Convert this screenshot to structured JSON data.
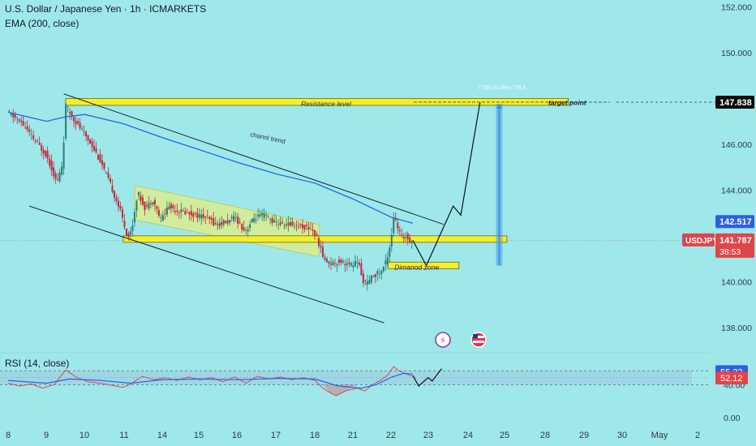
{
  "header": {
    "title": "U.S. Dollar / Japanese Yen · 1h · ICMARKETS",
    "indicator": "EMA (200, close)",
    "rsi_label": "RSI (14, close)"
  },
  "colors": {
    "background": "#9ee8ea",
    "candle_up": "#2c7a74",
    "candle_down": "#c2273a",
    "ema": "#2f5fe0",
    "zone_fill": "#f5ee2a",
    "channel_fill": "#d6ec93",
    "projection": "#3a8fe8",
    "rsi_line": "#e0454a",
    "rsi_ma": "#2f5fe0"
  },
  "chart_data": [
    {
      "type": "candlestick",
      "symbol": "USDJPY",
      "interval": "1h",
      "x_ticks": [
        "8",
        "9",
        "10",
        "11",
        "14",
        "15",
        "16",
        "17",
        "18",
        "21",
        "22",
        "23",
        "24",
        "25",
        "28",
        "29",
        "30",
        "May",
        "2"
      ],
      "y_ticks": [
        "152.000",
        "150.000",
        "146.000",
        "144.000",
        "140.000",
        "138.000"
      ],
      "ylim": [
        137.0,
        152.3
      ],
      "price_path": [
        {
          "t": 0,
          "p": 147.4
        },
        {
          "t": 0.35,
          "p": 147.0
        },
        {
          "t": 0.7,
          "p": 146.2
        },
        {
          "t": 1.0,
          "p": 145.6
        },
        {
          "t": 1.15,
          "p": 145.0
        },
        {
          "t": 1.3,
          "p": 144.3
        },
        {
          "t": 1.45,
          "p": 145.2
        },
        {
          "t": 1.52,
          "p": 147.7
        },
        {
          "t": 1.7,
          "p": 147.2
        },
        {
          "t": 1.95,
          "p": 146.6
        },
        {
          "t": 2.2,
          "p": 146.0
        },
        {
          "t": 2.45,
          "p": 145.2
        },
        {
          "t": 2.7,
          "p": 144.2
        },
        {
          "t": 2.95,
          "p": 143.1
        },
        {
          "t": 3.15,
          "p": 141.9
        },
        {
          "t": 3.25,
          "p": 142.3
        },
        {
          "t": 3.4,
          "p": 143.9
        },
        {
          "t": 3.6,
          "p": 143.2
        },
        {
          "t": 3.8,
          "p": 143.6
        },
        {
          "t": 4.0,
          "p": 142.7
        },
        {
          "t": 4.2,
          "p": 143.3
        },
        {
          "t": 4.45,
          "p": 143.1
        },
        {
          "t": 4.7,
          "p": 143.0
        },
        {
          "t": 4.95,
          "p": 142.9
        },
        {
          "t": 5.2,
          "p": 142.8
        },
        {
          "t": 5.45,
          "p": 142.5
        },
        {
          "t": 5.7,
          "p": 142.6
        },
        {
          "t": 5.95,
          "p": 142.8
        },
        {
          "t": 6.2,
          "p": 142.2
        },
        {
          "t": 6.45,
          "p": 142.8
        },
        {
          "t": 6.7,
          "p": 142.9
        },
        {
          "t": 6.95,
          "p": 142.6
        },
        {
          "t": 7.2,
          "p": 142.5
        },
        {
          "t": 7.45,
          "p": 142.5
        },
        {
          "t": 7.7,
          "p": 142.4
        },
        {
          "t": 7.95,
          "p": 142.3
        },
        {
          "t": 8.1,
          "p": 141.8
        },
        {
          "t": 8.25,
          "p": 141.0
        },
        {
          "t": 8.45,
          "p": 140.8
        },
        {
          "t": 8.7,
          "p": 140.9
        },
        {
          "t": 8.95,
          "p": 140.7
        },
        {
          "t": 9.15,
          "p": 140.9
        },
        {
          "t": 9.25,
          "p": 140.1
        },
        {
          "t": 9.4,
          "p": 139.9
        },
        {
          "t": 9.55,
          "p": 140.3
        },
        {
          "t": 9.75,
          "p": 140.4
        },
        {
          "t": 9.9,
          "p": 141.0
        },
        {
          "t": 10.0,
          "p": 141.8
        },
        {
          "t": 10.08,
          "p": 142.9
        },
        {
          "t": 10.18,
          "p": 142.3
        },
        {
          "t": 10.3,
          "p": 141.9
        },
        {
          "t": 10.4,
          "p": 142.0
        },
        {
          "t": 10.5,
          "p": 141.8
        },
        {
          "t": 10.55,
          "p": 141.787
        }
      ],
      "ema_path": [
        {
          "t": 0,
          "p": 147.4
        },
        {
          "t": 1.0,
          "p": 147.0
        },
        {
          "t": 1.5,
          "p": 147.2
        },
        {
          "t": 2.0,
          "p": 147.3
        },
        {
          "t": 3.0,
          "p": 146.9
        },
        {
          "t": 4.0,
          "p": 146.3
        },
        {
          "t": 5.0,
          "p": 145.75
        },
        {
          "t": 6.0,
          "p": 145.2
        },
        {
          "t": 7.0,
          "p": 144.7
        },
        {
          "t": 8.0,
          "p": 144.3
        },
        {
          "t": 9.0,
          "p": 143.6
        },
        {
          "t": 10.0,
          "p": 142.8
        },
        {
          "t": 10.55,
          "p": 142.55
        }
      ],
      "price_labels": [
        {
          "name": "target",
          "value": "147.838",
          "price": 147.838
        },
        {
          "name": "ema",
          "value": "142.517",
          "price": 142.517
        },
        {
          "name": "symbol",
          "value": "USDJPY",
          "price": 141.787
        },
        {
          "name": "last",
          "value": "141.787",
          "price": 141.787
        },
        {
          "name": "countdown",
          "value": "38:53",
          "price": 141.787
        }
      ],
      "zones": [
        {
          "name": "resistance",
          "label": "Resistance level",
          "top": 148.0,
          "bottom": 147.7,
          "t_start": 1.5,
          "t_end": 14.6
        },
        {
          "name": "support",
          "label": "",
          "top": 142.0,
          "bottom": 141.78,
          "t_start": 3.0,
          "t_end": 13.0
        },
        {
          "name": "diamond",
          "label": "Dimanod zone",
          "top": 140.85,
          "bottom": 140.62,
          "t_start": 9.9,
          "t_end": 11.75
        }
      ],
      "annotations": {
        "target_label": "target point",
        "channel_label": "channl trend",
        "measure_label": "7.785 (5.19%) 778.5",
        "target_price": 147.838,
        "projection_path": [
          {
            "t": 10.55,
            "p": 141.8
          },
          {
            "t": 10.9,
            "p": 140.7
          },
          {
            "t": 11.3,
            "p": 142.2
          },
          {
            "t": 11.6,
            "p": 143.3
          },
          {
            "t": 11.8,
            "p": 142.9
          },
          {
            "t": 12.3,
            "p": 147.838
          }
        ],
        "trend_lines": [
          {
            "from": {
              "t": 1.45,
              "p": 148.2
            },
            "to": {
              "t": 11.35,
              "p": 142.5
            }
          },
          {
            "from": {
              "t": 0.55,
              "p": 143.3
            },
            "to": {
              "t": 9.8,
              "p": 138.2
            }
          }
        ],
        "channel": {
          "t_start": 3.3,
          "t_end": 8.1,
          "top_start": 144.2,
          "top_end": 142.5,
          "bottom_start": 142.7,
          "bottom_end": 141.1
        }
      }
    },
    {
      "type": "line",
      "name": "RSI (14, close)",
      "y_ticks": [
        "40.00"
      ],
      "ylim": [
        10,
        80
      ],
      "bands": [
        40,
        60
      ],
      "last_values": {
        "ma": "55.22",
        "rsi": "52.12"
      },
      "rsi_path": [
        {
          "t": 0,
          "p": 42
        },
        {
          "t": 0.3,
          "p": 38
        },
        {
          "t": 0.6,
          "p": 41
        },
        {
          "t": 0.9,
          "p": 35
        },
        {
          "t": 1.2,
          "p": 40
        },
        {
          "t": 1.5,
          "p": 61
        },
        {
          "t": 1.8,
          "p": 50
        },
        {
          "t": 2.1,
          "p": 44
        },
        {
          "t": 2.4,
          "p": 42
        },
        {
          "t": 2.7,
          "p": 39
        },
        {
          "t": 3.0,
          "p": 36
        },
        {
          "t": 3.2,
          "p": 41
        },
        {
          "t": 3.5,
          "p": 52
        },
        {
          "t": 3.8,
          "p": 47
        },
        {
          "t": 4.1,
          "p": 50
        },
        {
          "t": 4.4,
          "p": 46
        },
        {
          "t": 4.7,
          "p": 51
        },
        {
          "t": 5.0,
          "p": 47
        },
        {
          "t": 5.3,
          "p": 50
        },
        {
          "t": 5.6,
          "p": 44
        },
        {
          "t": 5.9,
          "p": 51
        },
        {
          "t": 6.2,
          "p": 42
        },
        {
          "t": 6.5,
          "p": 52
        },
        {
          "t": 6.8,
          "p": 48
        },
        {
          "t": 7.1,
          "p": 51
        },
        {
          "t": 7.4,
          "p": 47
        },
        {
          "t": 7.7,
          "p": 50
        },
        {
          "t": 8.0,
          "p": 46
        },
        {
          "t": 8.2,
          "p": 35
        },
        {
          "t": 8.4,
          "p": 28
        },
        {
          "t": 8.55,
          "p": 24
        },
        {
          "t": 8.8,
          "p": 31
        },
        {
          "t": 9.1,
          "p": 35
        },
        {
          "t": 9.3,
          "p": 31
        },
        {
          "t": 9.5,
          "p": 40
        },
        {
          "t": 9.7,
          "p": 46
        },
        {
          "t": 9.9,
          "p": 54
        },
        {
          "t": 10.05,
          "p": 66
        },
        {
          "t": 10.15,
          "p": 61
        },
        {
          "t": 10.3,
          "p": 57
        },
        {
          "t": 10.45,
          "p": 54
        },
        {
          "t": 10.55,
          "p": 52.12
        }
      ],
      "ma_path": [
        {
          "t": 0,
          "p": 46
        },
        {
          "t": 1.0,
          "p": 42
        },
        {
          "t": 1.6,
          "p": 48
        },
        {
          "t": 2.4,
          "p": 46
        },
        {
          "t": 3.2,
          "p": 42
        },
        {
          "t": 4.0,
          "p": 47
        },
        {
          "t": 5.0,
          "p": 48
        },
        {
          "t": 6.0,
          "p": 47
        },
        {
          "t": 7.0,
          "p": 49
        },
        {
          "t": 8.0,
          "p": 48
        },
        {
          "t": 8.6,
          "p": 38
        },
        {
          "t": 9.2,
          "p": 35
        },
        {
          "t": 9.6,
          "p": 40
        },
        {
          "t": 10.0,
          "p": 51
        },
        {
          "t": 10.3,
          "p": 56
        },
        {
          "t": 10.55,
          "p": 55.22
        }
      ],
      "projection_path": [
        {
          "t": 10.55,
          "p": 53
        },
        {
          "t": 10.7,
          "p": 38
        },
        {
          "t": 10.95,
          "p": 50
        },
        {
          "t": 11.05,
          "p": 45
        },
        {
          "t": 11.3,
          "p": 63
        }
      ]
    }
  ]
}
